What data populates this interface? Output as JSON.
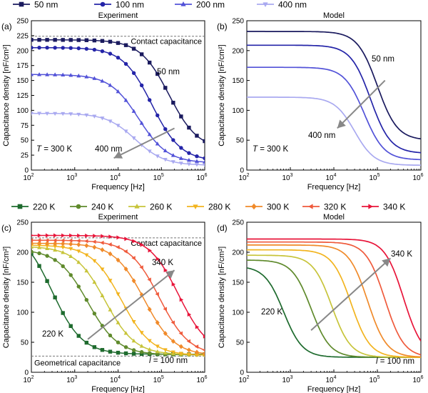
{
  "legend_top": [
    {
      "label": "50 nm",
      "color": "#1a1a5e",
      "marker": "square"
    },
    {
      "label": "100 nm",
      "color": "#2424a8",
      "marker": "circle"
    },
    {
      "label": "200 nm",
      "color": "#5252d8",
      "marker": "triangle-up"
    },
    {
      "label": "400 nm",
      "color": "#a9a9f0",
      "marker": "triangle-down"
    }
  ],
  "legend_bottom": [
    {
      "label": "220 K",
      "color": "#1e6b2e",
      "marker": "square"
    },
    {
      "label": "240 K",
      "color": "#5f8a2c",
      "marker": "circle"
    },
    {
      "label": "260 K",
      "color": "#c7c43a",
      "marker": "triangle-up"
    },
    {
      "label": "280 K",
      "color": "#f2b41f",
      "marker": "triangle-down"
    },
    {
      "label": "300 K",
      "color": "#f08a2a",
      "marker": "diamond"
    },
    {
      "label": "320 K",
      "color": "#ef5a3c",
      "marker": "triangle-left"
    },
    {
      "label": "340 K",
      "color": "#e8153a",
      "marker": "triangle-right"
    }
  ],
  "chart_data": [
    {
      "id": "a",
      "type": "line",
      "panel_label": "(a)",
      "title": "Experiment",
      "xlabel": "Frequency [Hz]",
      "ylabel": "Capacitance density [nF/cm²]",
      "xscale": "log",
      "xlim": [
        100,
        1000000
      ],
      "ylim": [
        0,
        250
      ],
      "yticks": [
        0,
        25,
        50,
        75,
        100,
        125,
        150,
        175,
        200,
        225,
        250
      ],
      "reference_line": {
        "y": 224,
        "label": "Contact capacitance"
      },
      "annotations": [
        {
          "text": "50 nm",
          "color": "#2424a8"
        },
        {
          "text": "400 nm",
          "color": "#a9a9f0"
        },
        {
          "text": "T = 300 K",
          "color": "#000000"
        }
      ],
      "arrow": {
        "from": [
          200000,
          70
        ],
        "to": [
          8000,
          20
        ]
      },
      "markers": true,
      "series": [
        {
          "name": "50 nm",
          "c0": 218,
          "cinf": 34,
          "fc": 150000,
          "n": 1.3
        },
        {
          "name": "100 nm",
          "c0": 205,
          "cinf": 15,
          "fc": 60000,
          "n": 1.3
        },
        {
          "name": "200 nm",
          "c0": 160,
          "cinf": 12,
          "fc": 30000,
          "n": 1.3
        },
        {
          "name": "400 nm",
          "c0": 95,
          "cinf": 8,
          "fc": 25000,
          "n": 1.3
        }
      ]
    },
    {
      "id": "b",
      "type": "line",
      "panel_label": "(b)",
      "title": "Model",
      "xlabel": "Frequency [Hz]",
      "ylabel": "Capacitance density [nF/cm²]",
      "xscale": "log",
      "xlim": [
        100,
        1000000
      ],
      "ylim": [
        0,
        250
      ],
      "yticks": [
        0,
        50,
        100,
        150,
        200,
        250
      ],
      "annotations": [
        {
          "text": "50 nm",
          "color": "#2424a8"
        },
        {
          "text": "400 nm",
          "color": "#a9a9f0"
        },
        {
          "text": "T = 300 K",
          "color": "#000000"
        }
      ],
      "arrow": {
        "from": [
          150000,
          150
        ],
        "to": [
          12000,
          70
        ]
      },
      "markers": false,
      "series": [
        {
          "name": "50 nm",
          "c0": 232,
          "cinf": 50,
          "fc": 100000,
          "n": 1.9
        },
        {
          "name": "100 nm",
          "c0": 209,
          "cinf": 28,
          "fc": 70000,
          "n": 1.9
        },
        {
          "name": "200 nm",
          "c0": 172,
          "cinf": 17,
          "fc": 50000,
          "n": 1.9
        },
        {
          "name": "400 nm",
          "c0": 122,
          "cinf": 8,
          "fc": 30000,
          "n": 1.9
        }
      ]
    },
    {
      "id": "c",
      "type": "line",
      "panel_label": "(c)",
      "title": "Experiment",
      "xlabel": "Frequency [Hz]",
      "ylabel": "Capacitance density [nF/cm²]",
      "xscale": "log",
      "xlim": [
        100,
        1000000
      ],
      "ylim": [
        0,
        250
      ],
      "yticks": [
        0,
        50,
        100,
        150,
        200,
        250
      ],
      "reference_lines": [
        {
          "y": 224,
          "label": "Contact capacitance"
        },
        {
          "y": 27,
          "label": "Geometrical capacitance"
        }
      ],
      "annotations": [
        {
          "text": "340 K",
          "color": "#e8153a"
        },
        {
          "text": "220 K",
          "color": "#1e6b2e"
        },
        {
          "text": "l = 100 nm",
          "color": "#000000"
        }
      ],
      "arrow": {
        "from": [
          2000,
          55
        ],
        "to": [
          200000,
          170
        ]
      },
      "markers": true,
      "series": [
        {
          "name": "220 K",
          "c0": 240,
          "cinf": 30,
          "fc": 300,
          "n": 1.25
        },
        {
          "name": "240 K",
          "c0": 205,
          "cinf": 29,
          "fc": 2000,
          "n": 1.25
        },
        {
          "name": "260 K",
          "c0": 210,
          "cinf": 29,
          "fc": 5000,
          "n": 1.25
        },
        {
          "name": "280 K",
          "c0": 212,
          "cinf": 28,
          "fc": 12000,
          "n": 1.25
        },
        {
          "name": "300 K",
          "c0": 215,
          "cinf": 28,
          "fc": 40000,
          "n": 1.25
        },
        {
          "name": "320 K",
          "c0": 220,
          "cinf": 28,
          "fc": 90000,
          "n": 1.25
        },
        {
          "name": "340 K",
          "c0": 228,
          "cinf": 30,
          "fc": 250000,
          "n": 1.25
        }
      ]
    },
    {
      "id": "d",
      "type": "line",
      "panel_label": "(d)",
      "title": "Model",
      "xlabel": "Frequency [Hz]",
      "ylabel": "Capacitance density [nF/cm²]",
      "xscale": "log",
      "xlim": [
        100,
        1000000
      ],
      "ylim": [
        0,
        250
      ],
      "yticks": [
        0,
        50,
        100,
        150,
        200,
        250
      ],
      "annotations": [
        {
          "text": "340 K",
          "color": "#e8153a"
        },
        {
          "text": "220 K",
          "color": "#1e6b2e"
        },
        {
          "text": "l = 100 nm",
          "color": "#000000"
        }
      ],
      "arrow": {
        "from": [
          3000,
          70
        ],
        "to": [
          200000,
          190
        ]
      },
      "markers": false,
      "series": [
        {
          "name": "220 K",
          "c0": 177,
          "cinf": 25,
          "fc": 700,
          "n": 2.0
        },
        {
          "name": "240 K",
          "c0": 187,
          "cinf": 25,
          "fc": 3000,
          "n": 2.0
        },
        {
          "name": "260 K",
          "c0": 195,
          "cinf": 25,
          "fc": 9000,
          "n": 2.0
        },
        {
          "name": "280 K",
          "c0": 204,
          "cinf": 25,
          "fc": 25000,
          "n": 2.0
        },
        {
          "name": "300 K",
          "c0": 212,
          "cinf": 25,
          "fc": 60000,
          "n": 2.0
        },
        {
          "name": "320 K",
          "c0": 217,
          "cinf": 25,
          "fc": 150000,
          "n": 2.0
        },
        {
          "name": "340 K",
          "c0": 222,
          "cinf": 25,
          "fc": 400000,
          "n": 2.0
        }
      ]
    }
  ]
}
